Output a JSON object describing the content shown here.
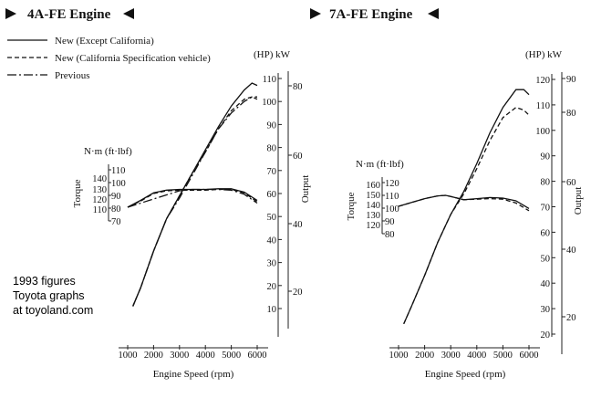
{
  "legend": [
    {
      "label": "New (Except California)",
      "style": "solid"
    },
    {
      "label": "New (California Specification vehicle)",
      "style": "dashed"
    },
    {
      "label": "Previous",
      "style": "dashdot"
    }
  ],
  "credit": {
    "line1": "1993 figures",
    "line2": "Toyota graphs",
    "line3": "at toyoland.com"
  },
  "chart_data": [
    {
      "type": "line",
      "title": "4A-FE Engine",
      "xlabel": "Engine Speed (rpm)",
      "x_ticks": [
        "1000",
        "2000",
        "3000",
        "4000",
        "5000",
        "6000"
      ],
      "xlim": [
        1000,
        6000
      ],
      "output_label": "Output",
      "output_units": "(HP) kW",
      "hp_ticks": [
        "10",
        "20",
        "30",
        "40",
        "50",
        "60",
        "70",
        "80",
        "90",
        "100",
        "110"
      ],
      "hp_range": [
        10,
        110
      ],
      "kw_ticks": [
        "20",
        "40",
        "60",
        "80"
      ],
      "torque_label": "Torque",
      "torque_units": "N·m (ft·lbf)",
      "nm_ticks": [
        "110",
        "120",
        "130",
        "140"
      ],
      "lbf_ticks": [
        "70",
        "80",
        "90",
        "100",
        "110"
      ],
      "nm_range": [
        105,
        145
      ],
      "output_hp": {
        "x": [
          1200,
          1500,
          2000,
          2500,
          3000,
          3500,
          4000,
          4500,
          5000,
          5500,
          5800,
          6000
        ],
        "new_except_california": [
          11,
          19,
          35,
          49,
          59,
          69,
          79,
          89,
          98,
          105,
          108,
          107
        ],
        "new_california": [
          11,
          19,
          35,
          49,
          59,
          69,
          78,
          88,
          96,
          101,
          102,
          102
        ],
        "previous": [
          11,
          19,
          35,
          49,
          58,
          68,
          78,
          88,
          95,
          100,
          102,
          101
        ]
      },
      "torque_nm": {
        "x": [
          1000,
          1500,
          2000,
          2500,
          3000,
          3500,
          4000,
          4500,
          5000,
          5500,
          6000
        ],
        "new_except_california": [
          115,
          120,
          125.5,
          127.5,
          128,
          128,
          128,
          128.5,
          128.5,
          126,
          120
        ],
        "new_california": [
          115,
          119.5,
          125,
          127,
          127.5,
          127.5,
          127.5,
          128,
          128,
          125.5,
          119
        ],
        "previous": [
          115,
          118,
          121,
          124,
          127,
          128,
          128,
          128,
          127.5,
          124.5,
          118
        ]
      }
    },
    {
      "type": "line",
      "title": "7A-FE Engine",
      "xlabel": "Engine Speed (rpm)",
      "x_ticks": [
        "1000",
        "2000",
        "3000",
        "4000",
        "5000",
        "6000"
      ],
      "xlim": [
        1000,
        6000
      ],
      "output_label": "Output",
      "output_units": "(HP) kW",
      "hp_ticks": [
        "20",
        "30",
        "40",
        "50",
        "60",
        "70",
        "80",
        "90",
        "100",
        "110",
        "120"
      ],
      "hp_range": [
        20,
        120
      ],
      "kw_ticks": [
        "20",
        "40",
        "60",
        "80",
        "90"
      ],
      "torque_label": "Torque",
      "torque_units": "N·m (ft·lbf)",
      "nm_ticks": [
        "120",
        "130",
        "140",
        "150",
        "160"
      ],
      "lbf_ticks": [
        "80",
        "90",
        "100",
        "110",
        "120"
      ],
      "nm_range": [
        115,
        165
      ],
      "output_hp": {
        "x": [
          1200,
          1500,
          2000,
          2500,
          3000,
          3500,
          4000,
          4500,
          5000,
          5500,
          5800,
          6000
        ],
        "new_except_california": [
          24,
          31,
          43,
          56,
          67,
          76,
          87,
          99,
          109,
          116,
          116,
          114
        ],
        "new_california": [
          24,
          31,
          43,
          56,
          67,
          75,
          85,
          96,
          105,
          109,
          108,
          106
        ]
      },
      "torque_nm": {
        "x": [
          1000,
          1500,
          2000,
          2500,
          2800,
          3000,
          3500,
          4000,
          4500,
          5000,
          5500,
          6000
        ],
        "new_except_california": [
          140,
          143.5,
          147,
          149.5,
          150,
          149,
          146,
          147,
          148,
          147.5,
          145,
          138
        ],
        "new_california": [
          140,
          143.5,
          147,
          149.5,
          150,
          149,
          146,
          146.5,
          147,
          146.5,
          143,
          136
        ]
      }
    }
  ]
}
